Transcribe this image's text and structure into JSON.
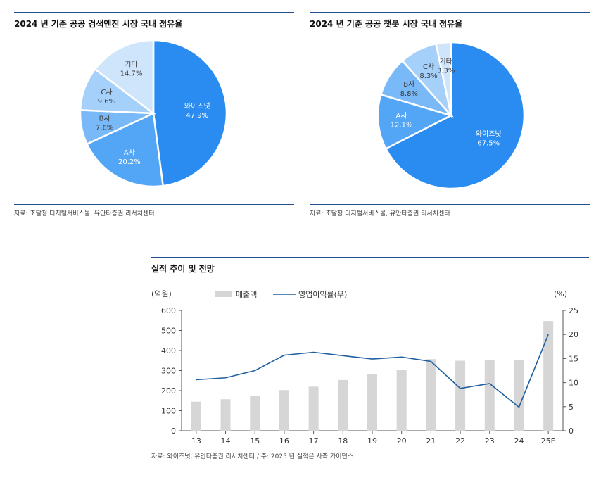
{
  "chart_data": [
    {
      "type": "pie",
      "title": "2024 년 기준 공공 검색엔진 시장 국내 점유율",
      "source": "자료: 조달청 디지털서비스몰, 유안타증권 리서치센터",
      "slices": [
        {
          "name": "와이즈넛",
          "value": 47.9,
          "label": "47.9%",
          "color": "#2a8cf0"
        },
        {
          "name": "A사",
          "value": 20.2,
          "label": "20.2%",
          "color": "#52a6f5"
        },
        {
          "name": "B사",
          "value": 7.6,
          "label": "7.6%",
          "color": "#7ab9f7"
        },
        {
          "name": "C사",
          "value": 9.6,
          "label": "9.6%",
          "color": "#a5d0fa"
        },
        {
          "name": "기타",
          "value": 14.7,
          "label": "14.7%",
          "color": "#cfe5fc"
        }
      ]
    },
    {
      "type": "pie",
      "title": "2024 년 기준 공공 챗봇 시장 국내 점유율",
      "source": "자료: 조달청 디지털서비스몰, 유안타증권 리서치센터",
      "slices": [
        {
          "name": "와이즈넛",
          "value": 67.5,
          "label": "67.5%",
          "color": "#2a8cf0"
        },
        {
          "name": "A사",
          "value": 12.1,
          "label": "12.1%",
          "color": "#52a6f5"
        },
        {
          "name": "B사",
          "value": 8.8,
          "label": "8.8%",
          "color": "#7ab9f7"
        },
        {
          "name": "C사",
          "value": 8.3,
          "label": "8.3%",
          "color": "#a5d0fa"
        },
        {
          "name": "기타",
          "value": 3.3,
          "label": "3.3%",
          "color": "#cfe5fc"
        }
      ]
    },
    {
      "type": "bar+line",
      "title": "실적 추이 및 전망",
      "source": "자료: 와이즈넛, 유안타증권 리서치센터 / 주: 2025 년 실적은 사측 가이던스",
      "categories": [
        "13",
        "14",
        "15",
        "16",
        "17",
        "18",
        "19",
        "20",
        "21",
        "22",
        "23",
        "24",
        "25E"
      ],
      "series": [
        {
          "name": "매출액",
          "type": "bar",
          "axis": "left",
          "color": "#d6d6d6",
          "values": [
            145,
            157,
            172,
            203,
            220,
            253,
            282,
            303,
            357,
            349,
            354,
            352,
            547
          ]
        },
        {
          "name": "영업이익률(우)",
          "type": "line",
          "axis": "right",
          "color": "#1f5fa0",
          "values": [
            10.6,
            11.0,
            12.5,
            15.7,
            16.3,
            15.6,
            14.9,
            15.3,
            14.4,
            8.8,
            9.8,
            4.9,
            20.0
          ]
        }
      ],
      "left_axis": {
        "unit": "(억원)",
        "min": 0,
        "max": 600,
        "ticks": [
          0,
          100,
          200,
          300,
          400,
          500,
          600
        ]
      },
      "right_axis": {
        "unit": "(%)",
        "min": 0,
        "max": 25,
        "ticks": [
          0,
          5,
          10,
          15,
          20,
          25
        ]
      }
    }
  ]
}
